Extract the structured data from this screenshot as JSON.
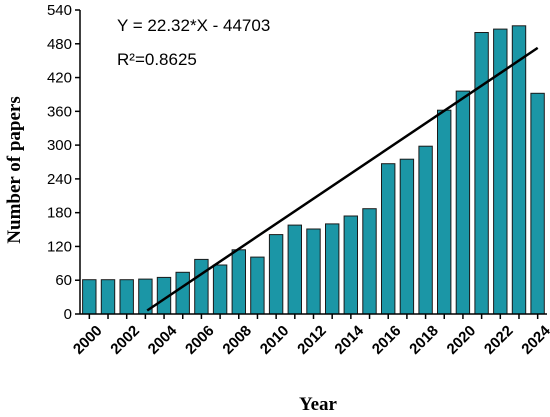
{
  "chart_data": {
    "type": "bar",
    "xlabel": "Year",
    "ylabel": "Number of papers",
    "ylim": [
      0,
      540
    ],
    "yticks": [
      "0",
      "60",
      "120",
      "180",
      "240",
      "300",
      "360",
      "420",
      "480",
      "540"
    ],
    "categories": [
      "2000",
      "2001",
      "2002",
      "2003",
      "2004",
      "2005",
      "2006",
      "2007",
      "2008",
      "2009",
      "2010",
      "2011",
      "2012",
      "2013",
      "2014",
      "2015",
      "2016",
      "2017",
      "2018",
      "2019",
      "2020",
      "2021",
      "2022",
      "2023",
      "2024"
    ],
    "xtick_labels": [
      "2000",
      "2002",
      "2004",
      "2006",
      "2008",
      "2010",
      "2012",
      "2014",
      "2016",
      "2018",
      "2020",
      "2022",
      "2024"
    ],
    "values": [
      61,
      61,
      61,
      62,
      65,
      74,
      97,
      87,
      114,
      101,
      141,
      158,
      151,
      160,
      174,
      187,
      267,
      275,
      298,
      362,
      396,
      500,
      506,
      512,
      392
    ],
    "trendline": {
      "equation": "Y = 22.32*X - 44703",
      "r_squared": "R²=0.8625",
      "slope": 22.32,
      "intercept": -44703,
      "x_range": [
        2003.1,
        2024
      ]
    },
    "colors": {
      "bar_fill": "#1b96a6",
      "bar_stroke": "#1a1a1a",
      "trendline": "#000000"
    },
    "grid": false,
    "legend": "none"
  }
}
